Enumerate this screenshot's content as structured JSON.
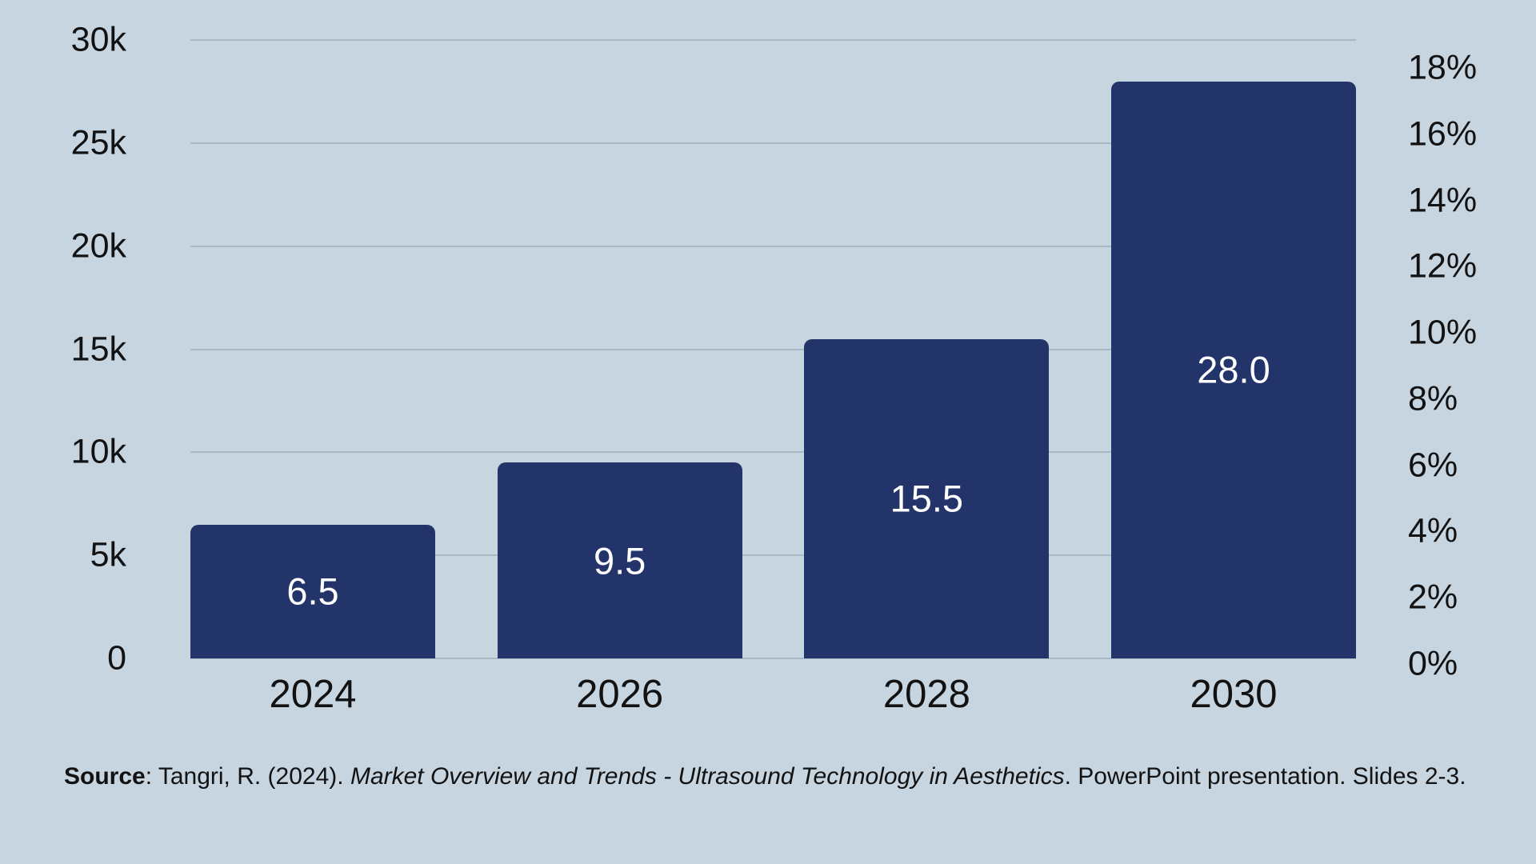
{
  "chart_data": {
    "type": "bar",
    "title": "",
    "categories": [
      "2024",
      "2026",
      "2028",
      "2030"
    ],
    "values": [
      6500,
      9500,
      15500,
      28000
    ],
    "bar_value_labels": [
      "6.5",
      "9.5",
      "15.5",
      "28.0"
    ],
    "left_axis": {
      "ticks": [
        "30k",
        "25k",
        "20k",
        "15k",
        "10k",
        "5k",
        "0"
      ],
      "tick_values": [
        30000,
        25000,
        20000,
        15000,
        10000,
        5000,
        0
      ],
      "range": [
        0,
        30000
      ]
    },
    "right_axis": {
      "ticks": [
        "18%",
        "16%",
        "14%",
        "12%",
        "10%",
        "8%",
        "6%",
        "4%",
        "2%",
        "0%"
      ]
    },
    "grid": true,
    "legend_position": "none",
    "colors": {
      "background": "#c6d5e0",
      "bar": "#23346a",
      "gridline": "#a9b8c5",
      "tick_text": "#121212",
      "bar_label_text": "#ffffff"
    }
  },
  "source_line": {
    "label_bold": "Source",
    "text_regular_1": ": Tangri, R. (2024). ",
    "text_italic": "Market Overview and Trends - Ultrasound Technology in Aesthetics",
    "text_regular_2": ". PowerPoint presentation. Slides 2-3."
  }
}
